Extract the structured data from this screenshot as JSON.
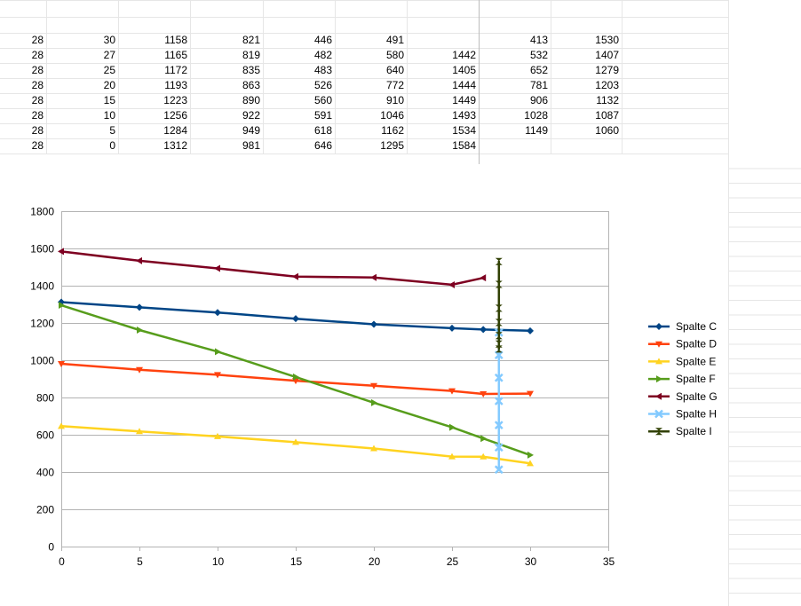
{
  "spreadsheet": {
    "rows": [
      [
        "28",
        "30",
        "1158",
        "821",
        "446",
        "491",
        "",
        "413",
        "1530"
      ],
      [
        "28",
        "27",
        "1165",
        "819",
        "482",
        "580",
        "1442",
        "532",
        "1407"
      ],
      [
        "28",
        "25",
        "1172",
        "835",
        "483",
        "640",
        "1405",
        "652",
        "1279"
      ],
      [
        "28",
        "20",
        "1193",
        "863",
        "526",
        "772",
        "1444",
        "781",
        "1203"
      ],
      [
        "28",
        "15",
        "1223",
        "890",
        "560",
        "910",
        "1449",
        "906",
        "1132"
      ],
      [
        "28",
        "10",
        "1256",
        "922",
        "591",
        "1046",
        "1493",
        "1028",
        "1087"
      ],
      [
        "28",
        "5",
        "1284",
        "949",
        "618",
        "1162",
        "1534",
        "1149",
        "1060"
      ],
      [
        "28",
        "0",
        "1312",
        "981",
        "646",
        "1295",
        "1584",
        "",
        ""
      ]
    ]
  },
  "chart_data": {
    "type": "line",
    "title": "",
    "xlabel": "",
    "ylabel": "",
    "xlim": [
      0,
      35
    ],
    "ylim": [
      0,
      1800
    ],
    "x_ticks": [
      0,
      5,
      10,
      15,
      20,
      25,
      30,
      35
    ],
    "y_ticks": [
      0,
      200,
      400,
      600,
      800,
      1000,
      1200,
      1400,
      1600,
      1800
    ],
    "grid": "horizontal",
    "legend_position": "right",
    "series": [
      {
        "name": "Spalte C",
        "color": "#004586",
        "marker": "diamond",
        "x": [
          30,
          27,
          25,
          20,
          15,
          10,
          5,
          0
        ],
        "values": [
          1158,
          1165,
          1172,
          1193,
          1223,
          1256,
          1284,
          1312
        ]
      },
      {
        "name": "Spalte D",
        "color": "#ff420e",
        "marker": "triangle-down",
        "x": [
          30,
          27,
          25,
          20,
          15,
          10,
          5,
          0
        ],
        "values": [
          821,
          819,
          835,
          863,
          890,
          922,
          949,
          981
        ]
      },
      {
        "name": "Spalte E",
        "color": "#ffd320",
        "marker": "triangle-up",
        "x": [
          30,
          27,
          25,
          20,
          15,
          10,
          5,
          0
        ],
        "values": [
          446,
          482,
          483,
          526,
          560,
          591,
          618,
          646
        ]
      },
      {
        "name": "Spalte F",
        "color": "#579d1c",
        "marker": "triangle-right",
        "x": [
          30,
          27,
          25,
          20,
          15,
          10,
          5,
          0
        ],
        "values": [
          491,
          580,
          640,
          772,
          910,
          1046,
          1162,
          1295
        ]
      },
      {
        "name": "Spalte G",
        "color": "#7e0021",
        "marker": "triangle-left",
        "x": [
          27,
          25,
          20,
          15,
          10,
          5,
          0
        ],
        "values": [
          1442,
          1405,
          1444,
          1449,
          1493,
          1534,
          1584
        ]
      },
      {
        "name": "Spalte H",
        "color": "#83caff",
        "marker": "x",
        "x": [
          28,
          28,
          28,
          28,
          28,
          28,
          28
        ],
        "values": [
          413,
          532,
          652,
          781,
          906,
          1028,
          1149
        ]
      },
      {
        "name": "Spalte I",
        "color": "#314004",
        "marker": "hourglass",
        "x": [
          28,
          28,
          28,
          28,
          28,
          28,
          28
        ],
        "values": [
          1530,
          1407,
          1279,
          1203,
          1132,
          1087,
          1060
        ]
      }
    ]
  }
}
